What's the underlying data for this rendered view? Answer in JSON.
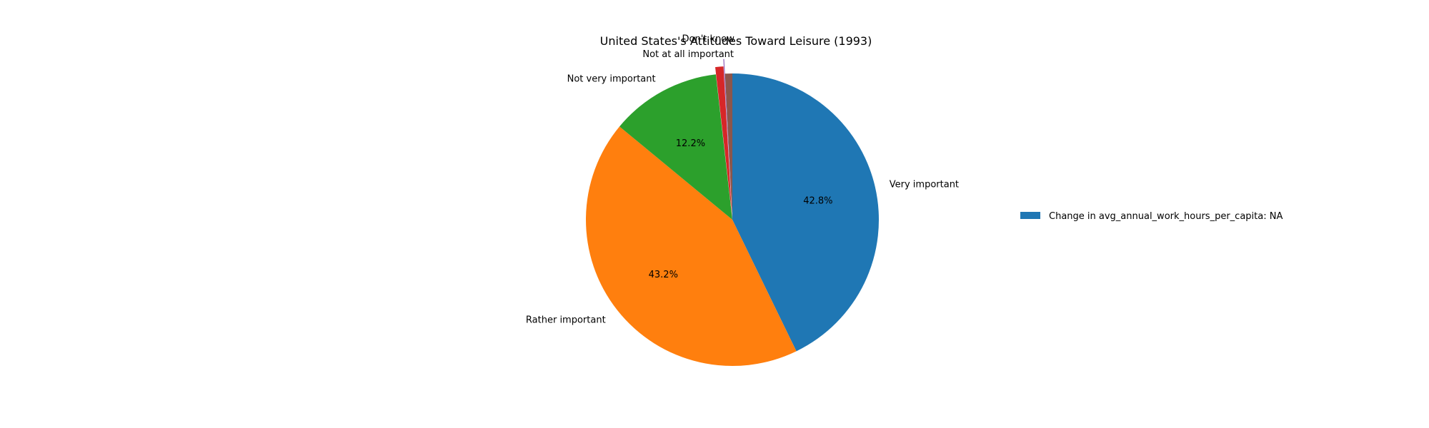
{
  "chart_data": {
    "type": "pie",
    "title": "United States's Attitudes Toward Leisure (1993)",
    "slices": [
      {
        "label": "Very important",
        "value": 42.8,
        "pct_label": "42.8%",
        "color": "#1f77b4"
      },
      {
        "label": "Rather important",
        "value": 43.2,
        "pct_label": "43.2%",
        "color": "#ff7f0e"
      },
      {
        "label": "Not very important",
        "value": 12.2,
        "pct_label": "12.2%",
        "color": "#2ca02c"
      },
      {
        "label": "Not at all important",
        "value": 0.9,
        "pct_label": "",
        "color": "#d62728"
      },
      {
        "label": "Don't know",
        "value": 0.1,
        "pct_label": "",
        "color": "#9467bd"
      },
      {
        "label": "",
        "value": 0.8,
        "pct_label": "",
        "color": "#8c564b"
      }
    ],
    "start_angle_deg": 90,
    "direction": "clockwise",
    "exploded_slices": [
      "Not at all important",
      "Don't know"
    ],
    "legend": {
      "entries": [
        {
          "label": "Change in avg_annual_work_hours_per_capita: NA",
          "color": "#1f77b4"
        }
      ],
      "placement": "right"
    }
  }
}
